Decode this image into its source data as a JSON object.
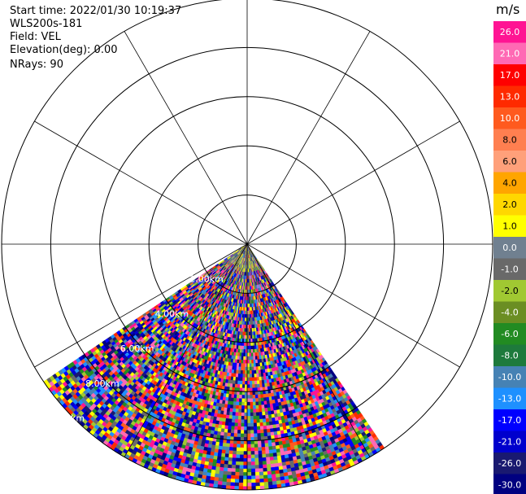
{
  "header": {
    "start_time": "Start time: 2022/01/30 10:19:37",
    "instrument": "WLS200s-181",
    "field": "Field: VEL",
    "elevation": "Elevation(deg): 0.00",
    "nrays": "NRays: 90"
  },
  "chart_data": {
    "type": "heatmap",
    "projection": "polar-ppi",
    "field": "VEL",
    "units": "m/s",
    "range_rings_km": [
      2,
      4,
      6,
      8,
      10
    ],
    "range_labels": [
      "2.00km",
      "4.00km",
      "6.00km",
      "8.00km",
      "10.0km"
    ],
    "max_range_km": 10,
    "spoke_step_deg": 30,
    "scan_sector_azimuth_deg": [
      146,
      236
    ],
    "elevation_deg": 0.0,
    "n_rays": 90,
    "colorbar": {
      "unit_label": "m/s",
      "tick_labels": [
        "26.0",
        "21.0",
        "17.0",
        "13.0",
        "10.0",
        "8.0",
        "6.0",
        "4.0",
        "2.0",
        "1.0",
        "0.0",
        "-1.0",
        "-2.0",
        "-4.0",
        "-6.0",
        "-8.0",
        "-10.0",
        "-13.0",
        "-17.0",
        "-21.0",
        "-26.0",
        "-30.0"
      ],
      "colors": [
        "#ff1493",
        "#ff69b4",
        "#ff0000",
        "#ff2a00",
        "#ff5a1e",
        "#ff7f50",
        "#ffa07a",
        "#ffa500",
        "#ffd700",
        "#ffff00",
        "#708090",
        "#696969",
        "#a0c832",
        "#6b8e23",
        "#228b22",
        "#1e7a3c",
        "#4682b4",
        "#1e90ff",
        "#0000ff",
        "#0000cd",
        "#191970",
        "#000080"
      ]
    }
  }
}
